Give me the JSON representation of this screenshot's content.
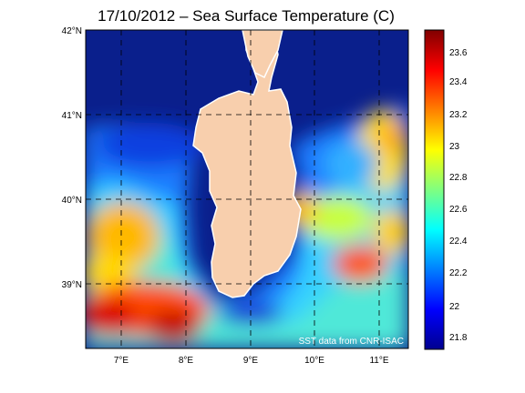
{
  "title": "17/10/2012 – Sea Surface Temperature (C)",
  "credit": "SST data from CNR-ISAC",
  "map": {
    "lat_ticks": [
      "42°N",
      "41°N",
      "40°N",
      "39°N"
    ],
    "lon_ticks": [
      "7°E",
      "8°E",
      "9°E",
      "10°E",
      "11°E"
    ],
    "lat_range": [
      38.25,
      42.0
    ],
    "lon_range": [
      6.5,
      11.5
    ],
    "grid": "dashed",
    "land_color": "#f8cfad",
    "no_data_color": "#0a1f8c"
  },
  "colorbar": {
    "ticks": [
      "23.6",
      "23.4",
      "23.2",
      "23",
      "22.8",
      "22.6",
      "22.4",
      "22.2",
      "22",
      "21.8"
    ],
    "range": [
      21.7,
      23.75
    ],
    "colormap": "jet"
  }
}
